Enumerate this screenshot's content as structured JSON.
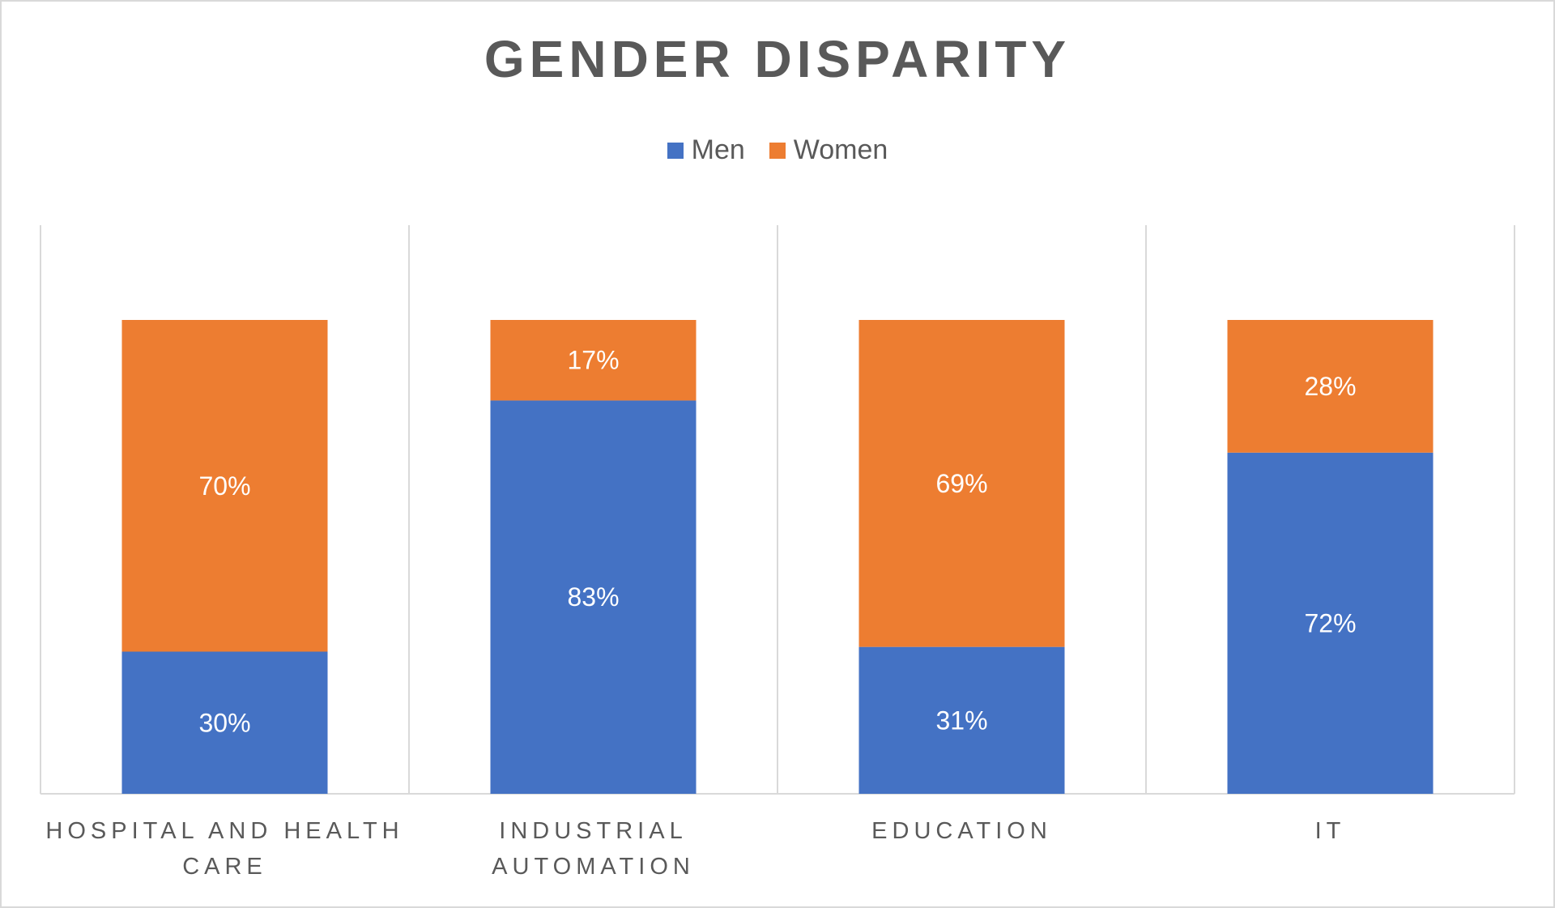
{
  "chart_data": {
    "type": "bar",
    "stacked": true,
    "percent_stacked": true,
    "title": "GENDER DISPARITY",
    "categories": [
      "HOSPITAL AND HEALTH CARE",
      "INDUSTRIAL AUTOMATION",
      "EDUCATION",
      "IT"
    ],
    "series": [
      {
        "name": "Men",
        "color": "#4472C4",
        "values": [
          30,
          83,
          31,
          72
        ],
        "labels": [
          "30%",
          "83%",
          "31%",
          "72%"
        ]
      },
      {
        "name": "Women",
        "color": "#ED7D31",
        "values": [
          70,
          17,
          69,
          28
        ],
        "labels": [
          "70%",
          "17%",
          "69%",
          "28%"
        ]
      }
    ],
    "ylim": [
      0,
      100
    ],
    "legend_position": "top",
    "grid": "vertical category separators",
    "xlabel": "",
    "ylabel": ""
  }
}
